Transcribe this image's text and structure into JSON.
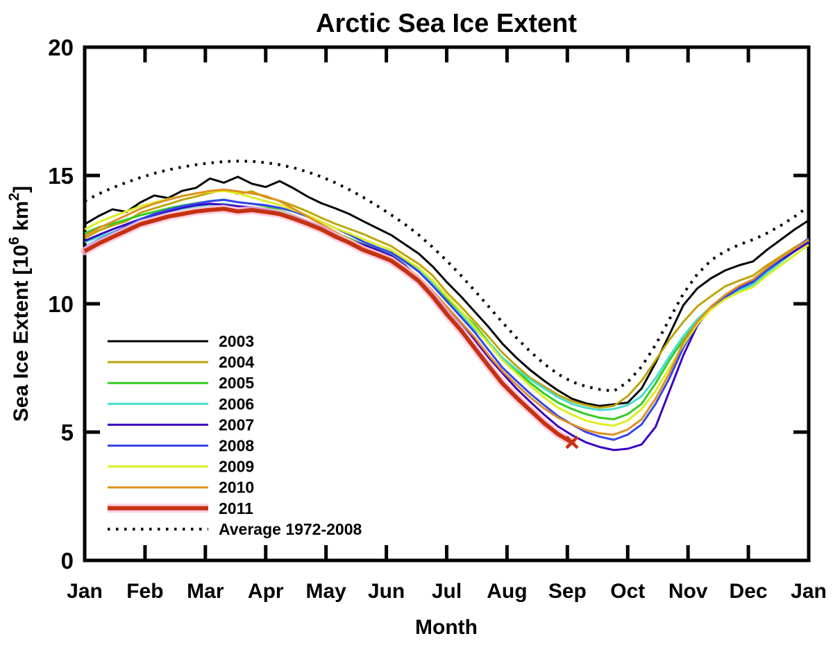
{
  "chart_data": {
    "type": "line",
    "title": "Arctic Sea Ice Extent",
    "xlabel": "Month",
    "ylabel": "Sea Ice Extent [10^6 km^2]",
    "ylabel_parts": {
      "pre": "Sea Ice Extent [10",
      "sup1": "6",
      "mid": " km",
      "sup2": "2",
      "post": "]"
    },
    "x_tick_labels": [
      "Jan",
      "Feb",
      "Mar",
      "Apr",
      "May",
      "Jun",
      "Jul",
      "Aug",
      "Sep",
      "Oct",
      "Nov",
      "Dec",
      "Jan"
    ],
    "y_ticks": [
      0,
      5,
      10,
      15,
      20
    ],
    "ylim": [
      0,
      20
    ],
    "xlim_months": [
      0,
      12
    ],
    "grid": false,
    "legend_position": "inside-lower-left",
    "weeks_per_year": 52,
    "axis_color": "#000000",
    "background_color": "#ffffff",
    "series": [
      {
        "name": "2003",
        "color": "#000000",
        "width": 3,
        "style": "solid",
        "values": [
          13.1,
          13.42,
          13.68,
          13.58,
          13.95,
          14.22,
          14.12,
          14.4,
          14.52,
          14.88,
          14.72,
          14.95,
          14.68,
          14.55,
          14.78,
          14.5,
          14.18,
          13.92,
          13.72,
          13.5,
          13.22,
          12.95,
          12.68,
          12.32,
          11.95,
          11.45,
          10.85,
          10.3,
          9.7,
          9.1,
          8.45,
          7.9,
          7.42,
          7.0,
          6.62,
          6.3,
          6.12,
          6.02,
          6.08,
          6.15,
          6.7,
          7.7,
          8.8,
          9.95,
          10.6,
          11.0,
          11.3,
          11.5,
          11.65,
          12.1,
          12.5,
          12.9,
          13.25
        ]
      },
      {
        "name": "2004",
        "color": "#BFA40A",
        "width": 3,
        "style": "solid",
        "values": [
          12.55,
          12.85,
          13.05,
          13.22,
          13.55,
          13.72,
          13.88,
          14.05,
          14.18,
          14.32,
          14.45,
          14.28,
          14.38,
          14.15,
          14.02,
          13.82,
          13.6,
          13.35,
          13.12,
          12.92,
          12.72,
          12.48,
          12.25,
          11.9,
          11.55,
          11.1,
          10.45,
          9.9,
          9.32,
          8.72,
          8.1,
          7.58,
          7.12,
          6.78,
          6.45,
          6.2,
          6.05,
          5.95,
          6.02,
          6.4,
          7.0,
          7.8,
          8.6,
          9.3,
          9.9,
          10.3,
          10.68,
          10.9,
          11.1,
          11.5,
          11.85,
          12.2,
          12.5
        ]
      },
      {
        "name": "2005",
        "color": "#33CC22",
        "width": 3,
        "style": "solid",
        "values": [
          12.75,
          12.98,
          13.12,
          13.28,
          13.45,
          13.58,
          13.72,
          13.83,
          13.92,
          14.0,
          14.06,
          13.96,
          13.9,
          13.8,
          13.65,
          13.45,
          13.22,
          13.0,
          12.76,
          12.55,
          12.32,
          12.15,
          11.98,
          11.7,
          11.35,
          10.9,
          10.2,
          9.7,
          9.18,
          8.52,
          7.9,
          7.4,
          6.92,
          6.5,
          6.15,
          5.9,
          5.7,
          5.56,
          5.5,
          5.7,
          6.1,
          6.9,
          7.8,
          8.6,
          9.3,
          9.9,
          10.28,
          10.58,
          10.85,
          11.3,
          11.7,
          12.08,
          12.4
        ]
      },
      {
        "name": "2006",
        "color": "#44DDCC",
        "width": 3,
        "style": "solid",
        "values": [
          12.4,
          12.6,
          12.78,
          13.0,
          13.25,
          13.4,
          13.55,
          13.68,
          13.78,
          13.86,
          13.9,
          13.8,
          13.72,
          13.62,
          13.5,
          13.32,
          13.12,
          12.9,
          12.7,
          12.5,
          12.3,
          12.1,
          11.92,
          11.62,
          11.3,
          10.8,
          10.1,
          9.6,
          9.02,
          8.5,
          7.9,
          7.45,
          7.05,
          6.7,
          6.36,
          6.1,
          5.95,
          5.86,
          5.9,
          6.05,
          6.4,
          7.1,
          7.95,
          8.75,
          9.4,
          9.88,
          10.2,
          10.5,
          10.75,
          11.2,
          11.62,
          12.05,
          12.45
        ]
      },
      {
        "name": "2007",
        "color": "#3A00C0",
        "width": 3,
        "style": "solid",
        "values": [
          12.45,
          12.68,
          12.9,
          13.1,
          13.3,
          13.46,
          13.6,
          13.74,
          13.84,
          13.9,
          13.86,
          13.8,
          13.76,
          13.7,
          13.56,
          13.4,
          13.2,
          13.0,
          12.76,
          12.5,
          12.3,
          12.1,
          11.88,
          11.5,
          11.0,
          10.4,
          9.8,
          9.2,
          8.6,
          7.92,
          7.3,
          6.7,
          6.18,
          5.68,
          5.22,
          4.88,
          4.6,
          4.42,
          4.3,
          4.35,
          4.52,
          5.2,
          6.6,
          8.0,
          9.15,
          9.85,
          10.3,
          10.62,
          10.9,
          11.3,
          11.7,
          12.05,
          12.4
        ]
      },
      {
        "name": "2008",
        "color": "#3344EE",
        "width": 3,
        "style": "solid",
        "values": [
          12.2,
          12.5,
          12.75,
          13.02,
          13.3,
          13.5,
          13.66,
          13.8,
          13.9,
          14.0,
          14.05,
          13.96,
          13.9,
          13.84,
          13.74,
          13.6,
          13.4,
          13.2,
          12.95,
          12.7,
          12.42,
          12.2,
          12.0,
          11.65,
          11.25,
          10.7,
          10.1,
          9.5,
          8.9,
          8.2,
          7.52,
          7.0,
          6.5,
          6.05,
          5.62,
          5.3,
          5.0,
          4.82,
          4.7,
          4.9,
          5.3,
          6.1,
          7.1,
          8.3,
          9.2,
          9.8,
          10.25,
          10.6,
          10.85,
          11.3,
          11.75,
          12.15,
          12.55
        ]
      },
      {
        "name": "2009",
        "color": "#DDEE22",
        "width": 3,
        "style": "solid",
        "values": [
          12.9,
          13.18,
          13.4,
          13.6,
          13.8,
          13.95,
          14.08,
          14.2,
          14.3,
          14.36,
          14.4,
          14.3,
          14.15,
          14.0,
          13.85,
          13.65,
          13.45,
          13.2,
          12.95,
          12.75,
          12.52,
          12.3,
          12.1,
          11.75,
          11.4,
          10.9,
          10.3,
          9.72,
          9.1,
          8.45,
          7.8,
          7.3,
          6.8,
          6.35,
          5.95,
          5.68,
          5.45,
          5.32,
          5.25,
          5.45,
          5.9,
          6.6,
          7.5,
          8.4,
          9.2,
          9.78,
          10.18,
          10.45,
          10.65,
          11.1,
          11.5,
          11.9,
          12.3
        ]
      },
      {
        "name": "2010",
        "color": "#DE9020",
        "width": 3,
        "style": "solid",
        "values": [
          12.65,
          12.95,
          13.2,
          13.45,
          13.7,
          13.9,
          14.05,
          14.2,
          14.3,
          14.4,
          14.45,
          14.38,
          14.3,
          14.2,
          14.0,
          13.7,
          13.4,
          13.1,
          12.8,
          12.5,
          12.22,
          12.0,
          11.8,
          11.45,
          11.05,
          10.5,
          9.9,
          9.3,
          8.7,
          8.0,
          7.38,
          6.85,
          6.35,
          5.92,
          5.56,
          5.3,
          5.08,
          4.95,
          4.9,
          5.1,
          5.5,
          6.3,
          7.3,
          8.5,
          9.3,
          9.9,
          10.35,
          10.7,
          10.95,
          11.4,
          11.8,
          12.15,
          12.5
        ]
      },
      {
        "name": "2011",
        "color": "#C53211",
        "width": 6,
        "style": "solid",
        "halo": "#FFC2D9",
        "end_marker": "x",
        "values": [
          12.05,
          12.35,
          12.6,
          12.85,
          13.1,
          13.25,
          13.4,
          13.5,
          13.6,
          13.66,
          13.7,
          13.6,
          13.65,
          13.58,
          13.5,
          13.32,
          13.12,
          12.9,
          12.62,
          12.38,
          12.1,
          11.9,
          11.68,
          11.3,
          10.88,
          10.28,
          9.6,
          8.98,
          8.28,
          7.58,
          6.9,
          6.35,
          5.85,
          5.35,
          4.92,
          4.6
        ]
      },
      {
        "name": "Average 1972-2008",
        "color": "#000000",
        "width": 4,
        "style": "dotted",
        "values": [
          14.0,
          14.28,
          14.52,
          14.73,
          14.92,
          15.08,
          15.22,
          15.33,
          15.42,
          15.49,
          15.54,
          15.56,
          15.55,
          15.5,
          15.42,
          15.3,
          15.14,
          14.95,
          14.72,
          14.45,
          14.15,
          13.82,
          13.47,
          13.1,
          12.68,
          12.2,
          11.68,
          11.12,
          10.52,
          9.9,
          9.28,
          8.68,
          8.14,
          7.66,
          7.26,
          6.96,
          6.78,
          6.66,
          6.6,
          6.95,
          7.55,
          8.4,
          9.4,
          10.4,
          11.15,
          11.7,
          12.05,
          12.3,
          12.5,
          12.75,
          13.05,
          13.4,
          13.8
        ]
      }
    ]
  }
}
